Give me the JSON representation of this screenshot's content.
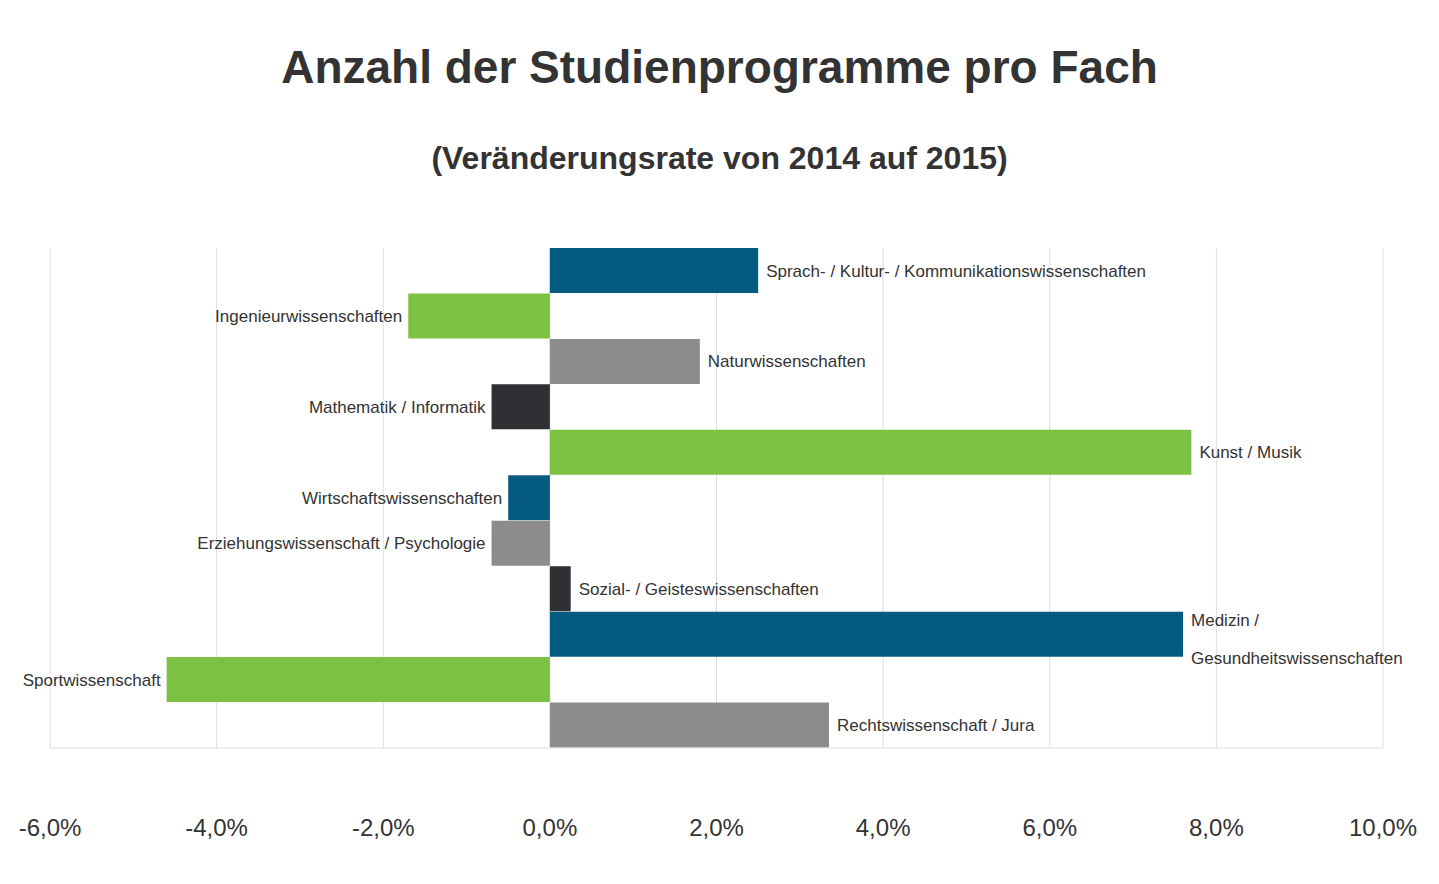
{
  "chart_data": {
    "type": "bar",
    "orientation": "horizontal",
    "title": "Anzahl der Studienprogramme pro Fach",
    "subtitle": "(Veränderungsrate von 2014 auf 2015)",
    "categories": [
      "Sprach- / Kultur- / Kommunikationswissenschaften",
      "Ingenieurwissenschaften",
      "Naturwissenschaften",
      "Mathematik / Informatik",
      "Kunst / Musik",
      "Wirtschaftswissenschaften",
      "Erziehungswissenschaft / Psychologie",
      "Sozial- / Geisteswissenschaften",
      "Medizin / Gesundheitswissenschaften",
      "Sportwissenschaft",
      "Rechtswissenschaft / Jura"
    ],
    "values": [
      2.5,
      -1.7,
      1.8,
      -0.7,
      7.7,
      -0.5,
      -0.7,
      0.25,
      7.6,
      -4.6,
      3.35
    ],
    "colors": [
      "#045a80",
      "#7dc142",
      "#8c8c8c",
      "#2f3033",
      "#7dc142",
      "#045a80",
      "#8c8c8c",
      "#2f3033",
      "#045a80",
      "#7dc142",
      "#8c8c8c"
    ],
    "xlim": [
      -6,
      10
    ],
    "xticks": [
      {
        "value": -6,
        "label": "-6,0%"
      },
      {
        "value": -4,
        "label": "-4,0%"
      },
      {
        "value": -2,
        "label": "-2,0%"
      },
      {
        "value": 0,
        "label": "0,0%"
      },
      {
        "value": 2,
        "label": "2,0%"
      },
      {
        "value": 4,
        "label": "4,0%"
      },
      {
        "value": 6,
        "label": "6,0%"
      },
      {
        "value": 8,
        "label": "8,0%"
      },
      {
        "value": 10,
        "label": "10,0%"
      }
    ],
    "grid": true,
    "tick_labels": "x"
  }
}
